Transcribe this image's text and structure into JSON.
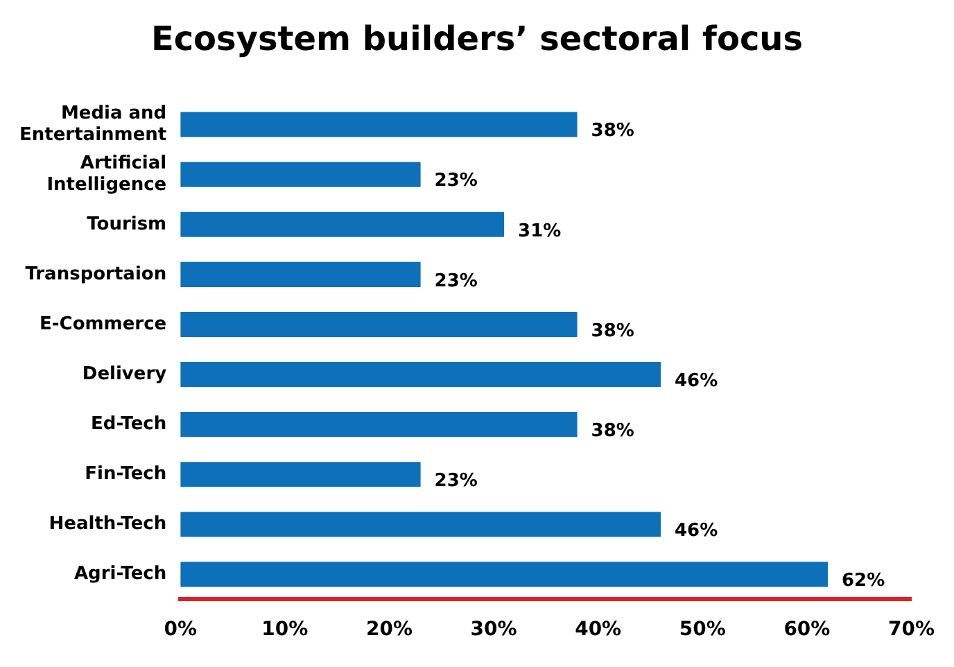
{
  "chart_data": {
    "type": "bar",
    "orientation": "horizontal",
    "title": "Ecosystem builders’ sectoral focus",
    "categories": [
      "Media and Entertainment",
      "Artificial Intelligence",
      "Tourism",
      "Transportaion",
      "E-Commerce",
      "Delivery",
      "Ed-Tech",
      "Fin-Tech",
      "Health-Tech",
      "Agri-Tech"
    ],
    "values": [
      38,
      23,
      31,
      23,
      38,
      46,
      38,
      23,
      46,
      62
    ],
    "value_labels": [
      "38%",
      "23%",
      "31%",
      "23%",
      "38%",
      "46%",
      "38%",
      "23%",
      "46%",
      "62%"
    ],
    "color": "#0e70b8",
    "xlim": [
      0,
      70
    ],
    "xticks": [
      {
        "value": 0,
        "label": "0%"
      },
      {
        "value": 10,
        "label": "10%"
      },
      {
        "value": 20,
        "label": "20%"
      },
      {
        "value": 30,
        "label": "30%"
      },
      {
        "value": 40,
        "label": "40%"
      },
      {
        "value": 50,
        "label": "50%"
      },
      {
        "value": 60,
        "label": "60%"
      },
      {
        "value": 70,
        "label": "70%"
      }
    ],
    "grid": false,
    "legend": false
  }
}
